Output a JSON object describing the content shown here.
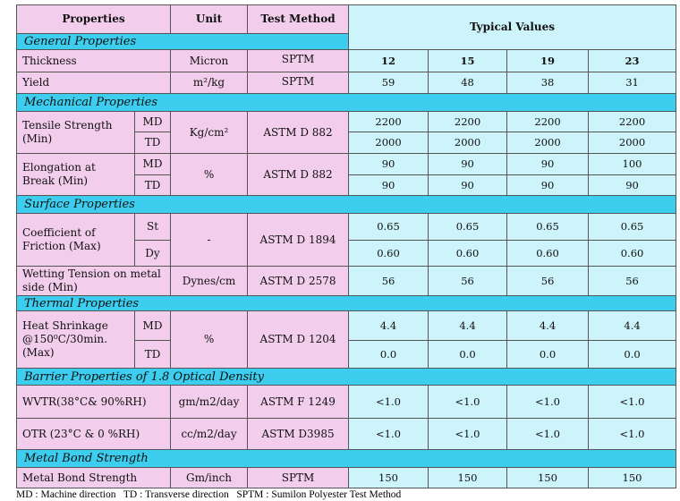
{
  "header": {
    "properties": "Properties",
    "unit": "Unit",
    "test_method": "Test Method",
    "typical_values": "Typical Values"
  },
  "sections": [
    {
      "title": "General Properties",
      "rows": [
        {
          "property": "Thickness",
          "unit": "Micron",
          "test_method": "SPTM",
          "values": [
            "12",
            "15",
            "19",
            "23"
          ]
        },
        {
          "property": "Yield",
          "unit": "m²/kg",
          "test_method": "SPTM",
          "values": [
            "59",
            "48",
            "38",
            "31"
          ]
        }
      ]
    },
    {
      "title": "Mechanical Properties",
      "rows": [
        {
          "property": "Tensile Strength (Min)",
          "unit": "Kg/cm²",
          "test_method": "ASTM D 882",
          "sub": [
            {
              "dir": "MD",
              "values": [
                "2200",
                "2200",
                "2200",
                "2200"
              ]
            },
            {
              "dir": "TD",
              "values": [
                "2000",
                "2000",
                "2000",
                "2000"
              ]
            }
          ]
        },
        {
          "property": "Elongation at Break (Min)",
          "unit": "%",
          "test_method": "ASTM D 882",
          "sub": [
            {
              "dir": "MD",
              "values": [
                "90",
                "90",
                "90",
                "100"
              ]
            },
            {
              "dir": "TD",
              "values": [
                "90",
                "90",
                "90",
                "90"
              ]
            }
          ]
        }
      ]
    },
    {
      "title": "Surface Properties",
      "rows": [
        {
          "property": "Coefficient of Friction (Max)",
          "unit": "-",
          "test_method": "ASTM D 1894",
          "sub": [
            {
              "dir": "St",
              "values": [
                "0.65",
                "0.65",
                "0.65",
                "0.65"
              ]
            },
            {
              "dir": "Dy",
              "values": [
                "0.60",
                "0.60",
                "0.60",
                "0.60"
              ]
            }
          ]
        },
        {
          "property": "Wetting Tension on metal side (Min)",
          "unit": "Dynes/cm",
          "test_method": "ASTM D 2578",
          "values": [
            "56",
            "56",
            "56",
            "56"
          ]
        }
      ]
    },
    {
      "title": "Thermal Properties",
      "rows": [
        {
          "property": "Heat Shrinkage @150⁰C/30min. (Max)",
          "unit": "%",
          "test_method": "ASTM D 1204",
          "sub": [
            {
              "dir": "MD",
              "values": [
                "4.4",
                "4.4",
                "4.4",
                "4.4"
              ]
            },
            {
              "dir": "TD",
              "values": [
                "0.0",
                "0.0",
                "0.0",
                "0.0"
              ]
            }
          ]
        }
      ]
    },
    {
      "title": "Barrier Properties of 1.8 Optical Density",
      "rows": [
        {
          "property": "WVTR(38°C& 90%RH)",
          "unit": "gm/m2/day",
          "test_method": "ASTM F 1249",
          "values": [
            "<1.0",
            "<1.0",
            "<1.0",
            "<1.0"
          ]
        },
        {
          "property": "OTR (23°C & 0 %RH)",
          "unit": "cc/m2/day",
          "test_method": "ASTM D3985",
          "values": [
            "<1.0",
            "<1.0",
            "<1.0",
            "<1.0"
          ]
        }
      ]
    },
    {
      "title": "Metal Bond Strength",
      "rows": [
        {
          "property": "Metal Bond Strength",
          "unit": "Gm/inch",
          "test_method": "SPTM",
          "values": [
            "150",
            "150",
            "150",
            "150"
          ]
        }
      ]
    }
  ],
  "footnote": "MD : Machine direction   TD : Transverse direction   SPTM : Sumilon Polyester Test Method"
}
